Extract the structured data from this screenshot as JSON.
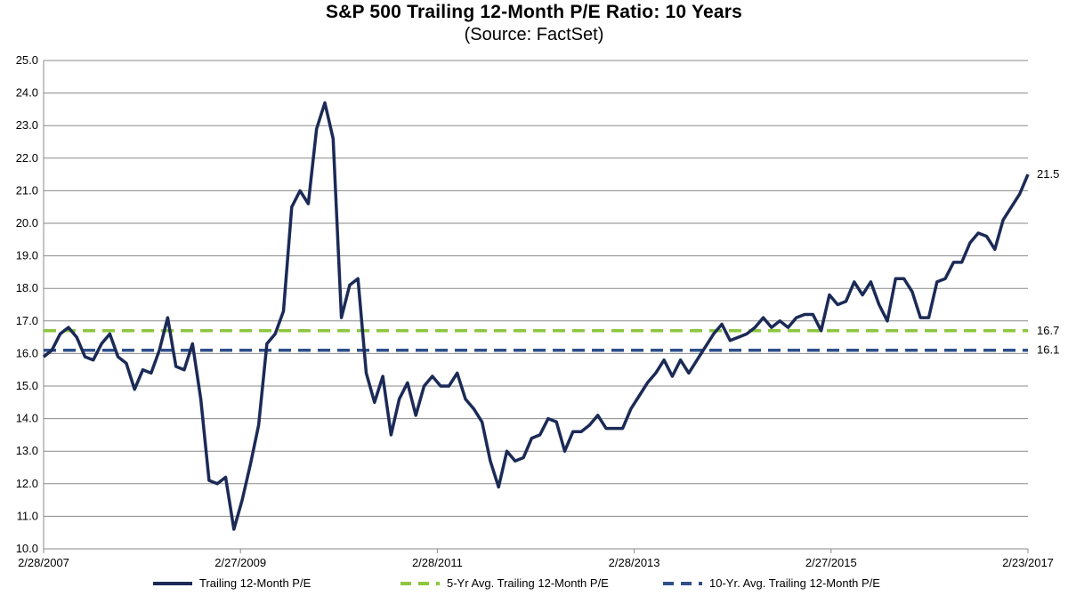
{
  "chart_data": {
    "type": "line",
    "title": "S&P 500 Trailing 12-Month P/E Ratio: 10 Years",
    "subtitle": "(Source: FactSet)",
    "xlabel": "",
    "ylabel": "",
    "ylim": [
      10.0,
      25.0
    ],
    "y_ticks": [
      "10.0",
      "11.0",
      "12.0",
      "13.0",
      "14.0",
      "15.0",
      "16.0",
      "17.0",
      "18.0",
      "19.0",
      "20.0",
      "21.0",
      "22.0",
      "23.0",
      "24.0",
      "25.0"
    ],
    "x_ticks": [
      "2/28/2007",
      "2/27/2009",
      "2/28/2011",
      "2/28/2013",
      "2/27/2015",
      "2/23/2017"
    ],
    "grid": true,
    "legend_position": "bottom",
    "series": [
      {
        "name": "Trailing 12-Month P/E",
        "color": "#1b2a56",
        "style": "solid",
        "values": [
          15.9,
          16.1,
          16.6,
          16.8,
          16.5,
          15.9,
          15.8,
          16.3,
          16.6,
          15.9,
          15.7,
          14.9,
          15.5,
          15.4,
          16.1,
          17.1,
          15.6,
          15.5,
          16.3,
          14.6,
          12.1,
          12.0,
          12.2,
          10.6,
          11.5,
          12.6,
          13.8,
          16.3,
          16.6,
          17.3,
          20.5,
          21.0,
          20.6,
          22.9,
          23.7,
          22.6,
          17.1,
          18.1,
          18.3,
          15.4,
          14.5,
          15.3,
          13.5,
          14.6,
          15.1,
          14.1,
          15.0,
          15.3,
          15.0,
          15.0,
          15.4,
          14.6,
          14.3,
          13.9,
          12.7,
          11.9,
          13.0,
          12.7,
          12.8,
          13.4,
          13.5,
          14.0,
          13.9,
          13.0,
          13.6,
          13.6,
          13.8,
          14.1,
          13.7,
          13.7,
          13.7,
          14.3,
          14.7,
          15.1,
          15.4,
          15.8,
          15.3,
          15.8,
          15.4,
          15.8,
          16.2,
          16.6,
          16.9,
          16.4,
          16.5,
          16.6,
          16.8,
          17.1,
          16.8,
          17.0,
          16.8,
          17.1,
          17.2,
          17.2,
          16.7,
          17.8,
          17.5,
          17.6,
          18.2,
          17.8,
          18.2,
          17.5,
          17.0,
          18.3,
          18.3,
          17.9,
          17.1,
          17.1,
          18.2,
          18.3,
          18.8,
          18.8,
          19.4,
          19.7,
          19.6,
          19.2,
          20.1,
          20.5,
          20.9,
          21.5
        ]
      },
      {
        "name": "5-Yr Avg. Trailing 12-Month P/E",
        "color": "#8dc63f",
        "style": "dashed",
        "value": 16.7,
        "end_label": "16.7"
      },
      {
        "name": "10-Yr. Avg. Trailing 12-Month P/E",
        "color": "#2e4f8a",
        "style": "dashed",
        "value": 16.1,
        "end_label": "16.1"
      }
    ],
    "last_value_label": "21.5"
  }
}
